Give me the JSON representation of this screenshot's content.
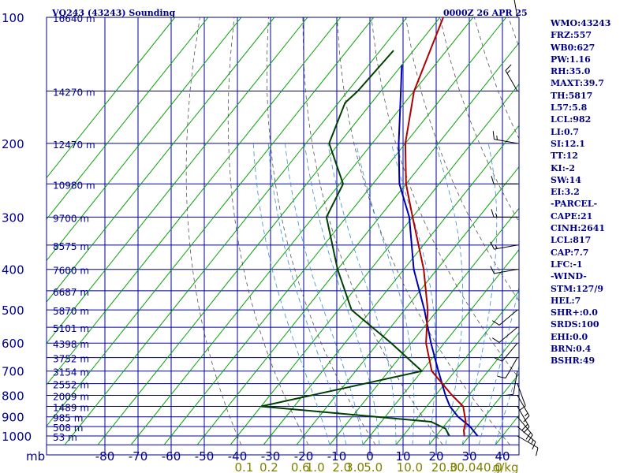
{
  "header": {
    "station": "VQ243 (43243) Sounding",
    "time": "0000Z 26 APR 25"
  },
  "stats": [
    "WMO:43243",
    "FRZ:557",
    "WB0:627",
    "PW:1.16",
    "RH:35.0",
    "MAXT:39.7",
    "TH:5817",
    "L57:5.8",
    "LCL:982",
    "LI:0.7",
    "SI:12.1",
    "TT:12",
    "KI:-2",
    "SW:14",
    "EI:3.2",
    "-PARCEL-",
    "CAPE:21",
    "CINH:2641",
    "LCL:817",
    "CAP:7.7",
    "LFC:-1",
    "-WIND-",
    "STM:127/9",
    "HEL:7",
    "SHR+:0.0",
    "SRDS:100",
    "EHI:0.0",
    "BRN:0.4",
    "BSHR:49"
  ],
  "colors": {
    "frame": "#00008b",
    "isobar": "#0000a0",
    "isotherm": "#00a000",
    "dry_adiabat": "#555555",
    "moist_adiabat": "#3a8fd0",
    "temperature": "#b00000",
    "virtual_temperature": "#0000b0",
    "dewpoint": "#004000",
    "mixing_ratio_labels": "#808000",
    "wind_barb": "#000000"
  },
  "chart_data": {
    "type": "skew-t",
    "pressure_axis_label": "mb",
    "pressure_ticks": [
      100,
      200,
      300,
      400,
      500,
      600,
      700,
      800,
      900,
      1000
    ],
    "temperature_ticks": [
      -80,
      -70,
      -60,
      -50,
      -40,
      -30,
      -20,
      -10,
      0,
      10,
      20,
      30,
      40
    ],
    "temperature_tick_labels": [
      "-80",
      "-70",
      "-60",
      "-50",
      "-40",
      "-30",
      "-20",
      "-10",
      "0",
      "10",
      "20",
      "30",
      "40"
    ],
    "mixing_ratio_labels": [
      {
        "text": "0.1",
        "t": -38
      },
      {
        "text": "0.2",
        "t": -30.5
      },
      {
        "text": "0.6",
        "t": -21
      },
      {
        "text": "1.0",
        "t": -16.5
      },
      {
        "text": "2.0",
        "t": -8.5
      },
      {
        "text": "3.0",
        "t": -4.5
      },
      {
        "text": "5.0",
        "t": 1
      },
      {
        "text": "10.0",
        "t": 12
      },
      {
        "text": "20.0",
        "t": 22.5
      },
      {
        "text": "30.0",
        "t": 28
      },
      {
        "text": "40.0",
        "t": 36
      },
      {
        "text": "g/kg",
        "t": 41
      }
    ],
    "height_labels": [
      {
        "p": 100,
        "text": "16640 m"
      },
      {
        "p": 150,
        "text": "14270 m"
      },
      {
        "p": 200,
        "text": "12470 m"
      },
      {
        "p": 250,
        "text": "10980 m"
      },
      {
        "p": 300,
        "text": "9700 m"
      },
      {
        "p": 350,
        "text": "8575 m"
      },
      {
        "p": 400,
        "text": "7600 m"
      },
      {
        "p": 450,
        "text": "6687 m"
      },
      {
        "p": 500,
        "text": "5870 m"
      },
      {
        "p": 550,
        "text": "5101 m"
      },
      {
        "p": 600,
        "text": "4398 m"
      },
      {
        "p": 650,
        "text": "3752 m"
      },
      {
        "p": 700,
        "text": "3154 m"
      },
      {
        "p": 750,
        "text": "2552 m"
      },
      {
        "p": 800,
        "text": "2009 m"
      },
      {
        "p": 850,
        "text": "1489 m"
      },
      {
        "p": 900,
        "text": "985 m"
      },
      {
        "p": 950,
        "text": "508 m"
      },
      {
        "p": 1000,
        "text": "53 m"
      }
    ],
    "temperature": [
      [
        1000,
        28.5
      ],
      [
        970,
        27
      ],
      [
        925,
        25.5
      ],
      [
        850,
        21
      ],
      [
        800,
        15
      ],
      [
        700,
        3
      ],
      [
        600,
        -5.5
      ],
      [
        500,
        -13
      ],
      [
        400,
        -24
      ],
      [
        300,
        -40
      ],
      [
        250,
        -50
      ],
      [
        200,
        -60
      ],
      [
        150,
        -70
      ],
      [
        100,
        -79
      ]
    ],
    "virtual_temperature": [
      [
        1000,
        32.5
      ],
      [
        950,
        28
      ],
      [
        900,
        22
      ],
      [
        850,
        17
      ],
      [
        800,
        13
      ],
      [
        700,
        5
      ],
      [
        600,
        -4
      ],
      [
        500,
        -14
      ],
      [
        400,
        -27
      ],
      [
        300,
        -41
      ],
      [
        250,
        -52
      ],
      [
        200,
        -62
      ],
      [
        150,
        -74
      ],
      [
        130,
        -80
      ]
    ],
    "dewpoint": [
      [
        1000,
        24
      ],
      [
        960,
        21
      ],
      [
        925,
        15
      ],
      [
        850,
        -40
      ],
      [
        700,
        0
      ],
      [
        600,
        -16
      ],
      [
        500,
        -36
      ],
      [
        400,
        -50
      ],
      [
        300,
        -66
      ],
      [
        250,
        -69
      ],
      [
        200,
        -83
      ],
      [
        160,
        -88
      ],
      [
        150,
        -87
      ],
      [
        120,
        -86
      ]
    ],
    "wind": [
      {
        "p": 1000,
        "dir": 120,
        "spd": 10
      },
      {
        "p": 950,
        "dir": 130,
        "spd": 15
      },
      {
        "p": 900,
        "dir": 140,
        "spd": 20
      },
      {
        "p": 850,
        "dir": 150,
        "spd": 20
      },
      {
        "p": 800,
        "dir": 150,
        "spd": 15
      },
      {
        "p": 750,
        "dir": 160,
        "spd": 10
      },
      {
        "p": 700,
        "dir": 190,
        "spd": 10
      },
      {
        "p": 650,
        "dir": 210,
        "spd": 10
      },
      {
        "p": 600,
        "dir": 220,
        "spd": 10
      },
      {
        "p": 550,
        "dir": 230,
        "spd": 10
      },
      {
        "p": 500,
        "dir": 230,
        "spd": 10
      },
      {
        "p": 400,
        "dir": 260,
        "spd": 10
      },
      {
        "p": 350,
        "dir": 260,
        "spd": 15
      },
      {
        "p": 300,
        "dir": 270,
        "spd": 15
      },
      {
        "p": 250,
        "dir": 270,
        "spd": 10
      },
      {
        "p": 200,
        "dir": 280,
        "spd": 15
      },
      {
        "p": 150,
        "dir": 330,
        "spd": 15
      },
      {
        "p": 100,
        "dir": 350,
        "spd": 20
      }
    ]
  }
}
